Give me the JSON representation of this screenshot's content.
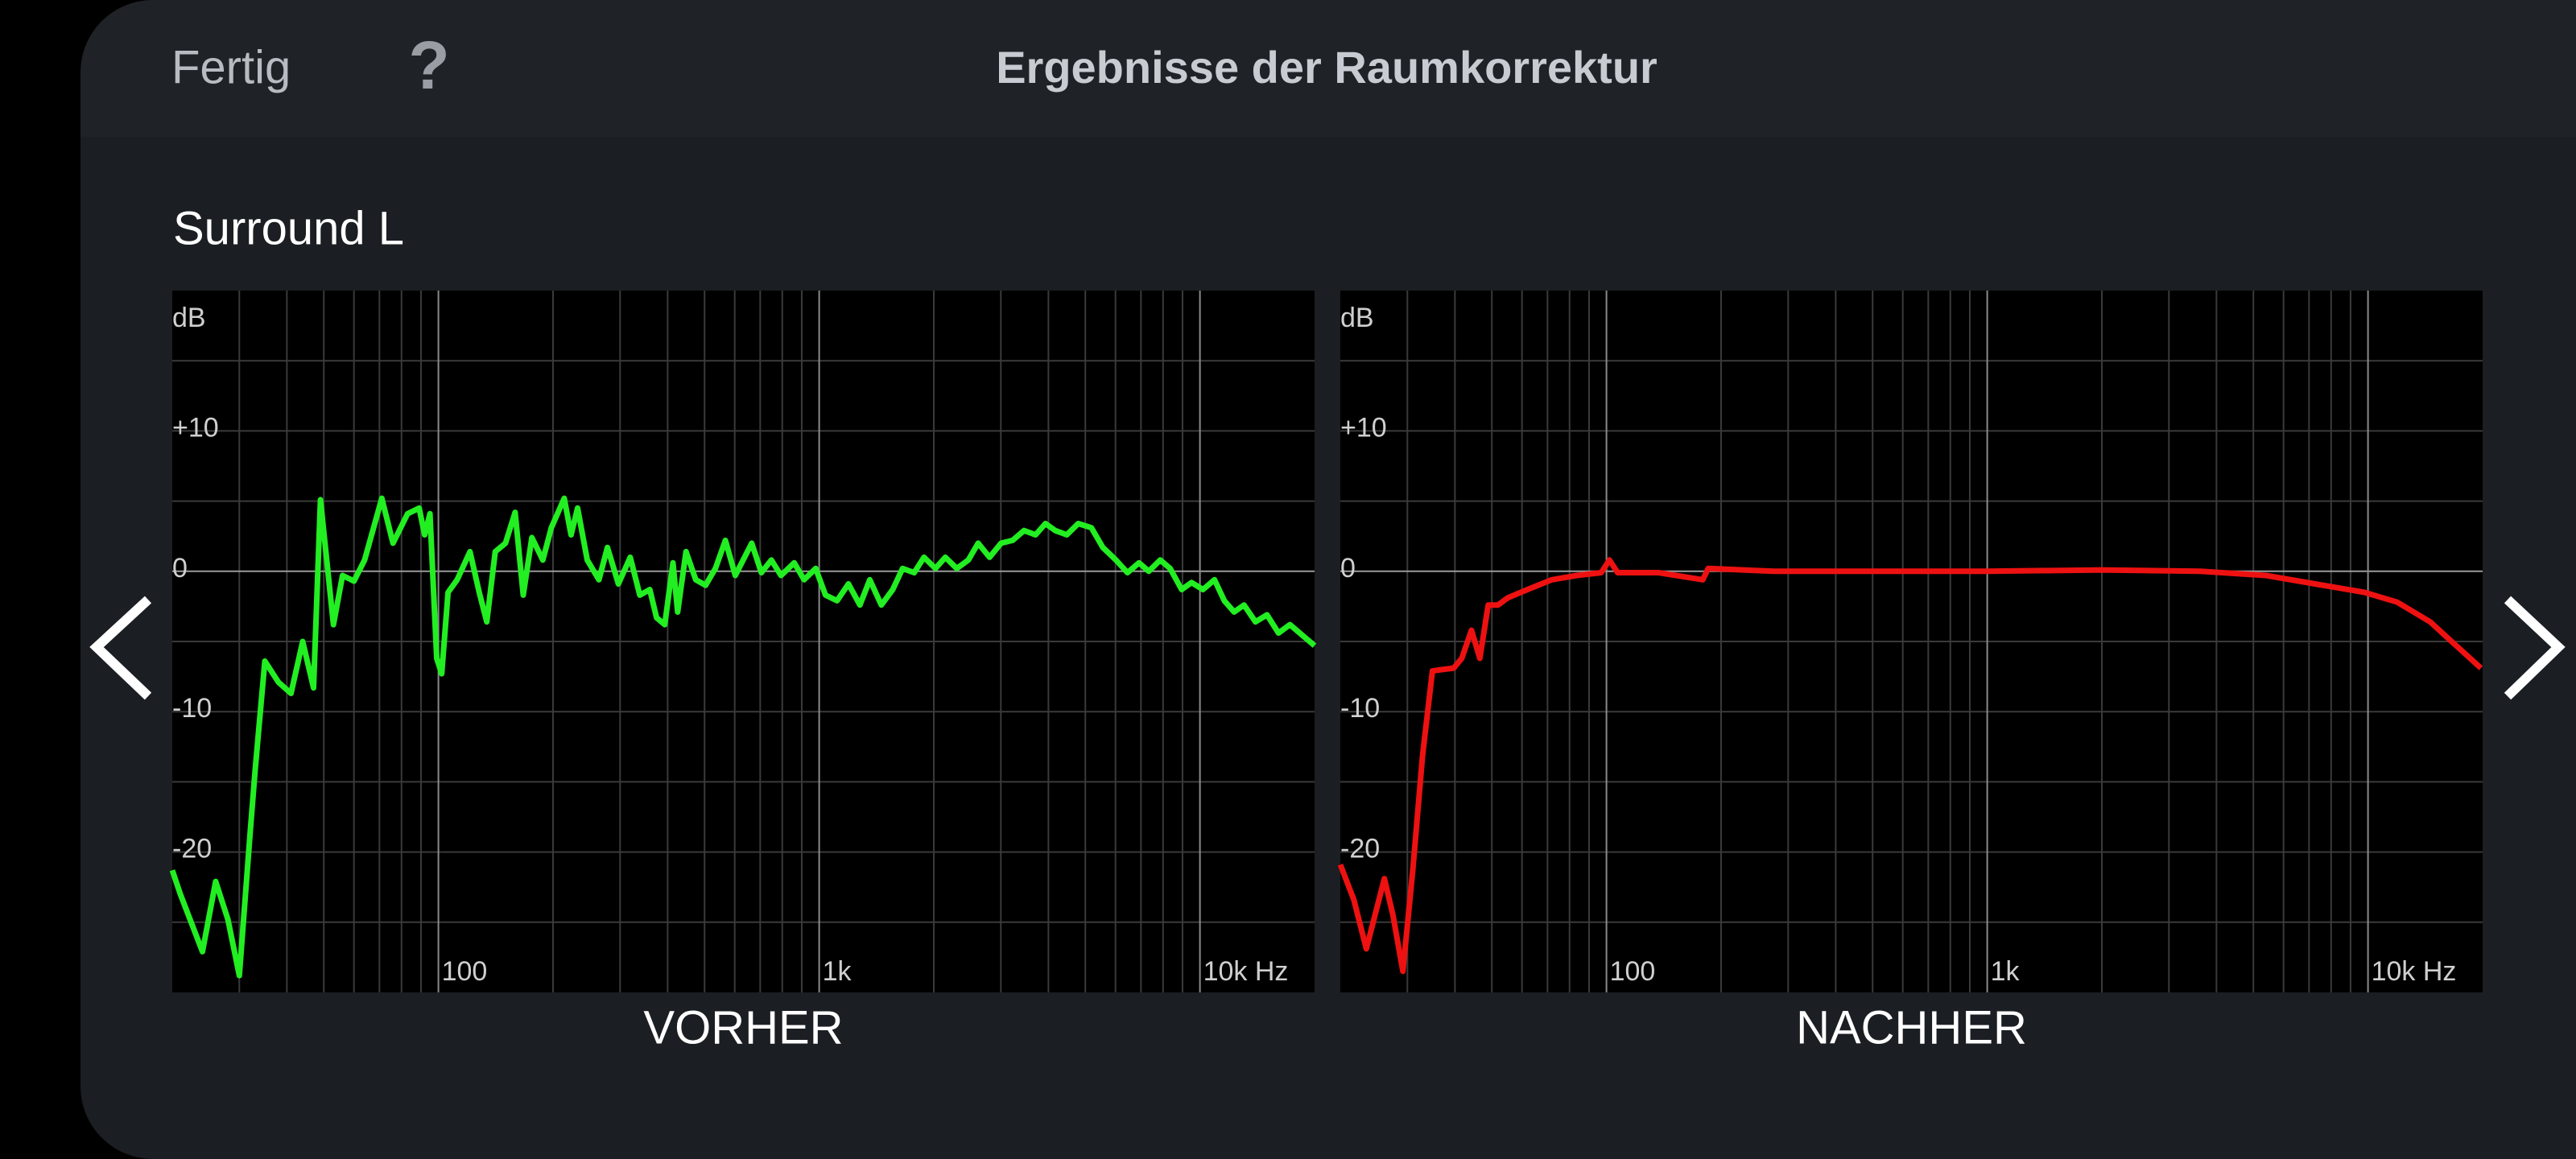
{
  "header": {
    "done": "Fertig",
    "help": "?",
    "title": "Ergebnisse der Raumkorrektur"
  },
  "section": "Surround L",
  "chart_data": [
    {
      "type": "line",
      "title": "VORHER",
      "y_label": "dB",
      "log_x": true,
      "grid": true,
      "color": "#22ee22",
      "xlim": [
        20,
        20000
      ],
      "ylim": [
        -30,
        20
      ],
      "xticks": [
        100,
        {
          "value": 1000,
          "label": "1k"
        },
        {
          "value": 10000,
          "label": "10k Hz"
        }
      ],
      "yticks": [
        {
          "value": 10,
          "label": "+10"
        },
        0,
        -10,
        -20
      ],
      "x_minor_ticks": [
        30,
        40,
        50,
        60,
        70,
        80,
        90,
        200,
        300,
        400,
        500,
        600,
        700,
        800,
        900,
        2000,
        3000,
        4000,
        5000,
        6000,
        7000,
        8000,
        9000
      ],
      "y_minor_ticks": [
        15,
        5,
        -5,
        -15,
        -25
      ],
      "x": [
        20,
        21,
        24,
        26,
        28,
        30,
        32,
        33,
        35,
        38,
        41,
        44,
        47,
        49,
        53,
        56,
        60,
        64,
        71,
        76,
        83,
        89,
        92,
        95,
        99,
        102,
        106,
        112,
        121,
        128,
        134,
        141,
        150,
        159,
        167,
        176,
        188,
        198,
        214,
        223,
        232,
        246,
        264,
        278,
        297,
        319,
        338,
        359,
        374,
        393,
        413,
        425,
        447,
        474,
        503,
        534,
        567,
        602,
        665,
        705,
        749,
        794,
        860,
        913,
        979,
        1039,
        1114,
        1194,
        1279,
        1358,
        1456,
        1560,
        1656,
        1776,
        1885,
        2020,
        2144,
        2298,
        2464,
        2615,
        2803,
        3004,
        3220,
        3452,
        3700,
        3928,
        4169,
        4469,
        4790,
        5187,
        5560,
        6019,
        6452,
        6916,
        7341,
        7866,
        8351,
        8953,
        9503,
        10186,
        10919,
        11590,
        12300,
        13056,
        13992,
        15000,
        16082,
        17232,
        18471,
        20000
      ],
      "values": [
        -21.3,
        -23.0,
        -27.1,
        -22.1,
        -24.8,
        -28.8,
        -18.8,
        -14.2,
        -6.4,
        -7.9,
        -8.7,
        -5.0,
        -8.3,
        5.1,
        -3.8,
        -0.3,
        -0.7,
        0.8,
        5.2,
        2.0,
        4.1,
        4.5,
        2.6,
        4.1,
        -6.2,
        -7.3,
        -1.5,
        -0.6,
        1.4,
        -1.5,
        -3.6,
        1.4,
        2.0,
        4.2,
        -1.7,
        2.4,
        0.8,
        3.1,
        5.2,
        2.6,
        4.5,
        0.8,
        -0.6,
        1.7,
        -0.9,
        1.0,
        -1.7,
        -1.3,
        -3.3,
        -3.8,
        0.6,
        -2.9,
        1.4,
        -0.6,
        -1.0,
        0.2,
        2.2,
        -0.3,
        2.0,
        -0.1,
        0.8,
        -0.3,
        0.6,
        -0.6,
        0.2,
        -1.7,
        -2.1,
        -0.9,
        -2.4,
        -0.6,
        -2.4,
        -1.3,
        0.2,
        -0.1,
        1.0,
        0.2,
        1.0,
        0.2,
        0.8,
        2.0,
        1.0,
        2.0,
        2.2,
        2.9,
        2.6,
        3.4,
        2.9,
        2.6,
        3.4,
        3.1,
        1.7,
        0.8,
        -0.1,
        0.6,
        0,
        0.8,
        0.2,
        -1.3,
        -0.8,
        -1.3,
        -0.6,
        -2.1,
        -2.9,
        -2.4,
        -3.6,
        -3.1,
        -4.4,
        -3.8,
        -4.5,
        -5.3
      ]
    },
    {
      "type": "line",
      "title": "NACHHER",
      "y_label": "dB",
      "log_x": true,
      "grid": true,
      "color": "#ee1111",
      "xlim": [
        20,
        20000
      ],
      "ylim": [
        -30,
        20
      ],
      "xticks": [
        100,
        {
          "value": 1000,
          "label": "1k"
        },
        {
          "value": 10000,
          "label": "10k Hz"
        }
      ],
      "yticks": [
        {
          "value": 10,
          "label": "+10"
        },
        0,
        -10,
        -20
      ],
      "x_minor_ticks": [
        30,
        40,
        50,
        60,
        70,
        80,
        90,
        200,
        300,
        400,
        500,
        600,
        700,
        800,
        900,
        2000,
        3000,
        4000,
        5000,
        6000,
        7000,
        8000,
        9000
      ],
      "y_minor_ticks": [
        15,
        5,
        -5,
        -15,
        -25
      ],
      "x": [
        20,
        21.7,
        23.4,
        26.1,
        27.5,
        29.2,
        31.0,
        32.9,
        34.9,
        37.0,
        39.7,
        41.7,
        44.2,
        46.5,
        48.9,
        51.9,
        55.0,
        62.0,
        71.9,
        83.5,
        96.9,
        101.8,
        107,
        137,
        179,
        185,
        275,
        551,
        1000,
        2000,
        3628,
        5396,
        7266,
        9790,
        11940,
        14563,
        16895,
        19800
      ],
      "values": [
        -20.9,
        -23.4,
        -26.9,
        -21.9,
        -24.5,
        -28.5,
        -21.3,
        -13.1,
        -7.1,
        -7.0,
        -6.9,
        -6.2,
        -4.2,
        -6.2,
        -2.4,
        -2.4,
        -1.9,
        -1.3,
        -0.6,
        -0.3,
        -0.1,
        0.8,
        -0.1,
        -0.1,
        -0.6,
        0.2,
        0,
        0,
        0,
        0.1,
        0,
        -0.3,
        -0.9,
        -1.5,
        -2.2,
        -3.6,
        -5.2,
        -6.9
      ]
    }
  ]
}
